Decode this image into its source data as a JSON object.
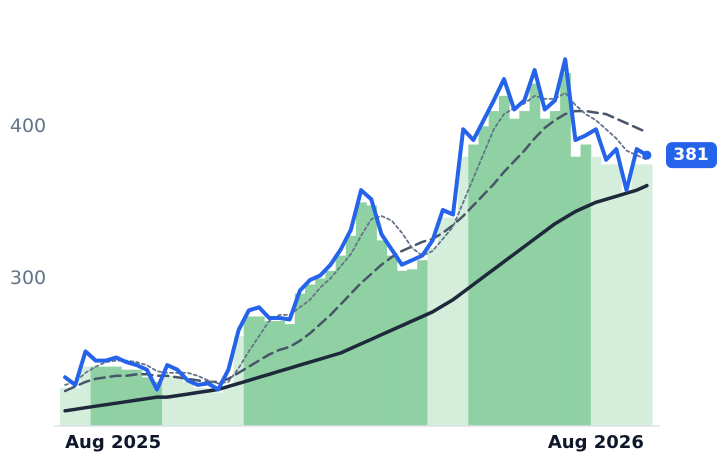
{
  "chart_data": {
    "type": "line",
    "categories": [
      "Aug 2025",
      null,
      null,
      null,
      null,
      null,
      null,
      null,
      null,
      null,
      null,
      null,
      null,
      null,
      null,
      null,
      null,
      null,
      null,
      null,
      null,
      null,
      null,
      null,
      null,
      null,
      null,
      null,
      null,
      null,
      null,
      null,
      null,
      null,
      null,
      null,
      null,
      null,
      null,
      null,
      null,
      null,
      null,
      null,
      null,
      null,
      null,
      null,
      null,
      null,
      null,
      null,
      "Aug 2026",
      null,
      null,
      null,
      null,
      null
    ],
    "ylim": [
      203,
      483
    ],
    "yticks": [
      300,
      400
    ],
    "grid": false,
    "bars": {
      "values": [
        228,
        228,
        242,
        242,
        242,
        242,
        240,
        240,
        235,
        232,
        236,
        236,
        232,
        228,
        228,
        225,
        228,
        262,
        275,
        275,
        272,
        272,
        270,
        290,
        296,
        300,
        305,
        315,
        328,
        350,
        348,
        325,
        315,
        305,
        306,
        312,
        320,
        340,
        340,
        380,
        388,
        400,
        410,
        420,
        405,
        410,
        428,
        405,
        410,
        435,
        380,
        388,
        380,
        375,
        375,
        355,
        375,
        375
      ],
      "colors": [
        "#d5eedc",
        "#d5eedc",
        "#d5eedc",
        "#8fd1a2",
        "#8fd1a2",
        "#8fd1a2",
        "#8fd1a2",
        "#8fd1a2",
        "#8fd1a2",
        "#8fd1a2",
        "#d5eedc",
        "#d5eedc",
        "#d5eedc",
        "#d5eedc",
        "#d5eedc",
        "#d5eedc",
        "#d5eedc",
        "#d5eedc",
        "#8fd1a2",
        "#8fd1a2",
        "#8fd1a2",
        "#8fd1a2",
        "#8fd1a2",
        "#8fd1a2",
        "#8fd1a2",
        "#8fd1a2",
        "#8fd1a2",
        "#8fd1a2",
        "#8fd1a2",
        "#8fd1a2",
        "#8fd1a2",
        "#8fd1a2",
        "#8fd1a2",
        "#8fd1a2",
        "#8fd1a2",
        "#8fd1a2",
        "#d5eedc",
        "#d5eedc",
        "#d5eedc",
        "#d5eedc",
        "#8fd1a2",
        "#8fd1a2",
        "#8fd1a2",
        "#8fd1a2",
        "#8fd1a2",
        "#8fd1a2",
        "#8fd1a2",
        "#8fd1a2",
        "#8fd1a2",
        "#8fd1a2",
        "#8fd1a2",
        "#8fd1a2",
        "#d5eedc",
        "#d5eedc",
        "#d5eedc",
        "#d5eedc",
        "#d5eedc",
        "#d5eedc"
      ]
    },
    "series": [
      {
        "color": "#1e293b",
        "style": "solid",
        "width": 3.5,
        "values": [
          213,
          214,
          215,
          216,
          217,
          218,
          219,
          220,
          221,
          222,
          222,
          223,
          224,
          225,
          226,
          227,
          229,
          231,
          233,
          235,
          237,
          239,
          241,
          243,
          245,
          247,
          249,
          251,
          254,
          257,
          260,
          263,
          266,
          269,
          272,
          275,
          278,
          282,
          286,
          291,
          296,
          301,
          306,
          311,
          316,
          321,
          326,
          331,
          336,
          340,
          344,
          347,
          350,
          352,
          354,
          356,
          358,
          361
        ]
      },
      {
        "color": "#475569",
        "style": "dashed",
        "width": 2.5,
        "values": [
          226,
          229,
          232,
          234,
          235,
          236,
          236,
          237,
          237,
          236,
          236,
          235,
          234,
          233,
          232,
          232,
          234,
          238,
          242,
          246,
          250,
          253,
          255,
          259,
          264,
          270,
          276,
          283,
          290,
          297,
          303,
          309,
          314,
          318,
          321,
          324,
          326,
          330,
          335,
          341,
          348,
          355,
          362,
          370,
          377,
          384,
          392,
          399,
          404,
          408,
          410,
          410,
          409,
          408,
          405,
          402,
          399,
          396
        ]
      },
      {
        "color": "#64748b",
        "style": "dotted",
        "width": 1.8,
        "values": [
          230,
          232,
          238,
          242,
          245,
          246,
          246,
          245,
          243,
          239,
          238,
          238,
          238,
          236,
          233,
          231,
          232,
          241,
          252,
          262,
          272,
          276,
          276,
          281,
          286,
          294,
          300,
          308,
          316,
          328,
          339,
          341,
          338,
          330,
          320,
          315,
          318,
          326,
          334,
          350,
          366,
          382,
          398,
          408,
          412,
          415,
          420,
          418,
          418,
          422,
          414,
          408,
          404,
          398,
          392,
          384,
          381,
          378
        ]
      },
      {
        "color": "#2563eb",
        "style": "solid",
        "width": 4,
        "values": [
          235,
          230,
          252,
          246,
          246,
          248,
          245,
          243,
          240,
          227,
          243,
          240,
          233,
          230,
          231,
          227,
          240,
          266,
          279,
          281,
          274,
          274,
          273,
          292,
          299,
          302,
          309,
          319,
          332,
          358,
          352,
          329,
          319,
          309,
          312,
          315,
          325,
          345,
          342,
          398,
          391,
          404,
          417,
          431,
          411,
          417,
          437,
          411,
          417,
          444,
          391,
          394,
          398,
          378,
          385,
          358,
          385,
          381
        ]
      }
    ]
  }
}
